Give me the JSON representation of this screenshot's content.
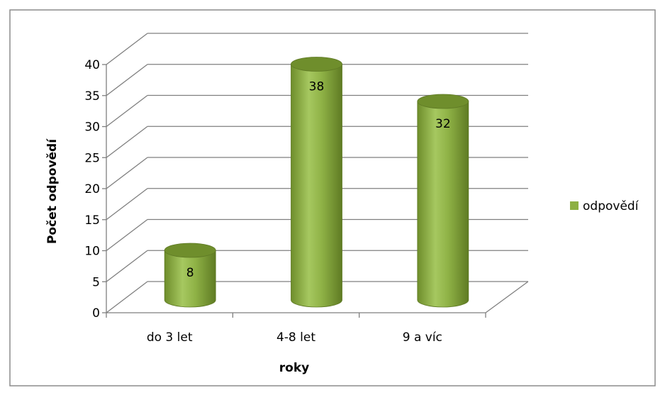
{
  "chart_data": {
    "type": "bar",
    "categories": [
      "do 3 let",
      "4-8 let",
      "9 a víc"
    ],
    "series": [
      {
        "name": "odpovědí",
        "values": [
          8,
          38,
          32
        ]
      }
    ],
    "xlabel": "roky",
    "ylabel": "Počet odpovědí",
    "ylim": [
      0,
      40
    ],
    "yticks": [
      0,
      5,
      10,
      15,
      20,
      25,
      30,
      35,
      40
    ],
    "grid": true,
    "legend": "right",
    "bar_shape": "cylinder",
    "style": "3d",
    "colors": {
      "bar_fill": "#8db043",
      "bar_top": "#6f8e2c",
      "bar_edge": "#5f7a25",
      "grid": "#7f7f7f",
      "frame": "#7f7f7f"
    }
  }
}
